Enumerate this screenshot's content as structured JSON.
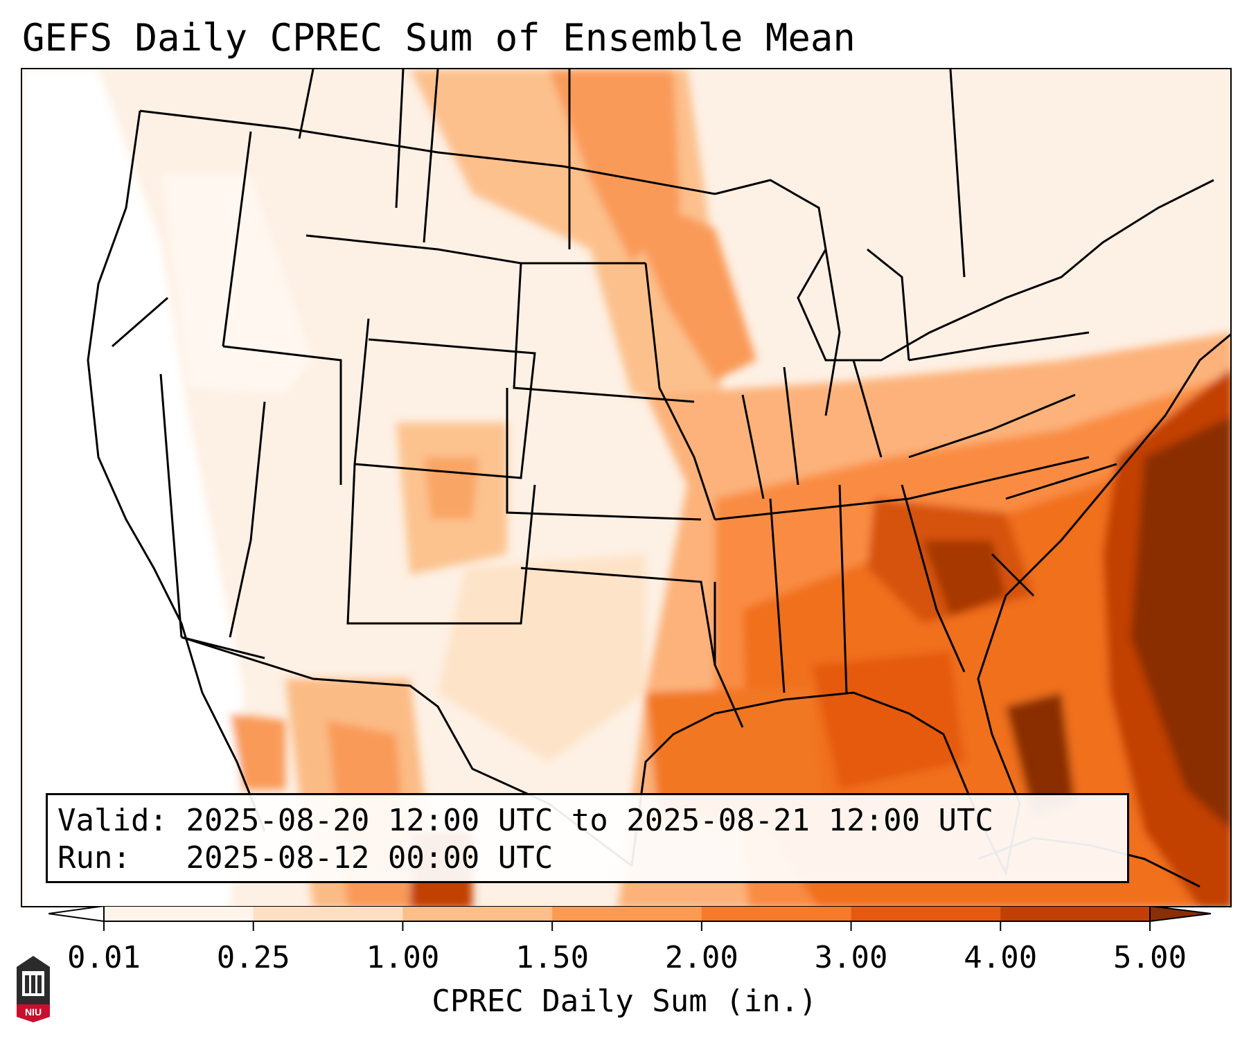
{
  "title": "GEFS Daily CPREC Sum of Ensemble Mean",
  "info": {
    "valid_label": "Valid:",
    "valid_value": "2025-08-20 12:00 UTC to 2025-08-21 12:00 UTC",
    "run_label": "Run:",
    "run_value": "2025-08-12 00:00 UTC"
  },
  "colorbar": {
    "label": "CPREC Daily Sum (in.)",
    "ticks": [
      "0.01",
      "0.25",
      "1.00",
      "1.50",
      "2.00",
      "3.00",
      "4.00",
      "5.00"
    ],
    "colors": [
      "#fff4ea",
      "#fde0c4",
      "#fdbf8a",
      "#fc9a52",
      "#f77a2a",
      "#e55a10",
      "#c24005",
      "#8a2e05"
    ],
    "extend": "both"
  },
  "logo": {
    "text": "NIU",
    "color": "#c8102e"
  },
  "map": {
    "projection": "Lambert Conformal, Continental US",
    "borders": "state and country boundaries in black",
    "heaviest_region": "western Atlantic east of the Carolinas",
    "field_description": "precipitation shading in oranges"
  }
}
